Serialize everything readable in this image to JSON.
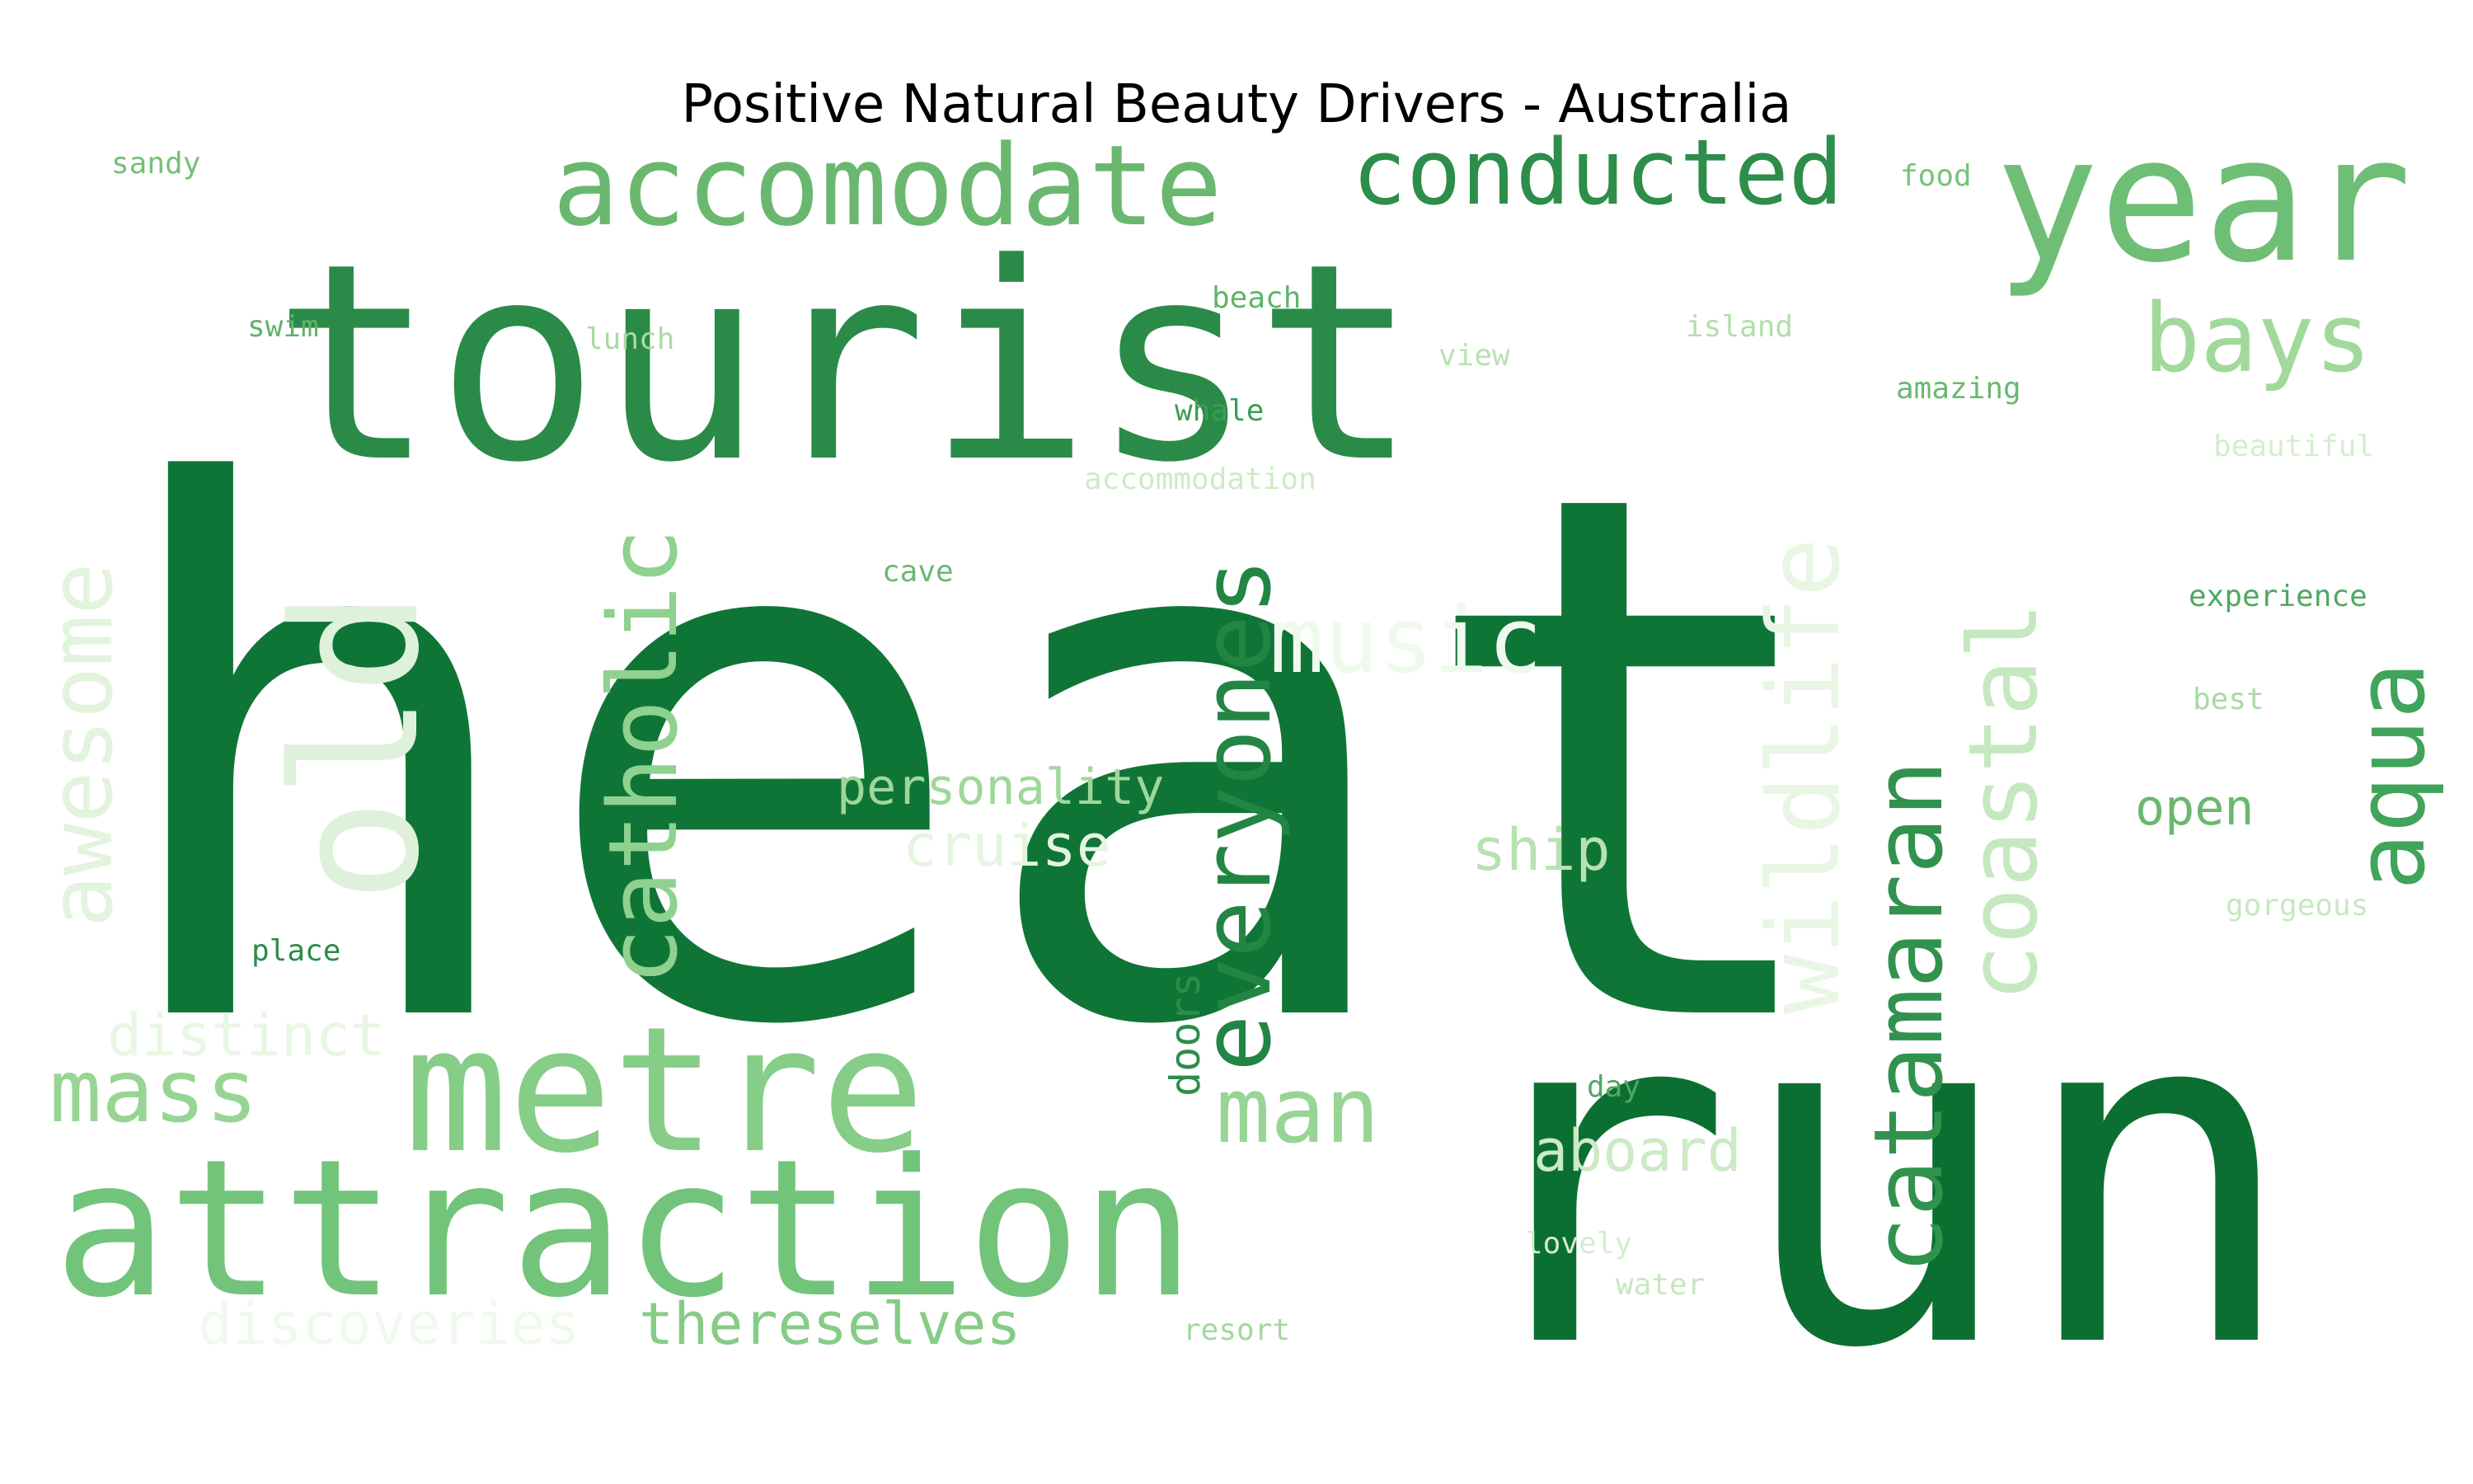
{
  "chart_data": {
    "type": "wordcloud",
    "title": "Positive Natural Beauty Drivers - Australia",
    "colormap": "Greens",
    "words": [
      {
        "text": "heat",
        "color": "#0f7536"
      },
      {
        "text": "run",
        "color": "#0c6f32"
      },
      {
        "text": "tourist",
        "color": "#2a8b49"
      },
      {
        "text": "attraction",
        "color": "#72c47b"
      },
      {
        "text": "year",
        "color": "#6fbe76"
      },
      {
        "text": "metre",
        "color": "#86cd87"
      },
      {
        "text": "accomodate",
        "color": "#6ab86f"
      },
      {
        "text": "conducted",
        "color": "#2d8d4a"
      },
      {
        "text": "old",
        "color": "#def1da"
      },
      {
        "text": "catholic",
        "color": "#8fd18f"
      },
      {
        "text": "everyones",
        "color": "#228544"
      },
      {
        "text": "catamaran",
        "color": "#31924e"
      },
      {
        "text": "coastal",
        "color": "#c6e8c0"
      },
      {
        "text": "wildlife",
        "color": "#e8f6e4"
      },
      {
        "text": "aqua",
        "color": "#40a45a"
      },
      {
        "text": "bays",
        "color": "#a1d99b"
      },
      {
        "text": "awesome",
        "color": "#e2f3de"
      },
      {
        "text": "mass",
        "color": "#98d594"
      },
      {
        "text": "man",
        "color": "#98d594"
      },
      {
        "text": "music",
        "color": "#f0f9ed"
      },
      {
        "text": "personality",
        "color": "#9fd79a"
      },
      {
        "text": "cruise",
        "color": "#e5f5e0"
      },
      {
        "text": "ship",
        "color": "#b7e2b1"
      },
      {
        "text": "distinct",
        "color": "#e8f6e4"
      },
      {
        "text": "aboard",
        "color": "#cdeac7"
      },
      {
        "text": "thereselves",
        "color": "#86cc86"
      },
      {
        "text": "discoveries",
        "color": "#f0f9ed"
      },
      {
        "text": "doors",
        "color": "#2d8d4a"
      },
      {
        "text": "open",
        "color": "#6ab86f"
      },
      {
        "text": "sandy",
        "color": "#73c077"
      },
      {
        "text": "food",
        "color": "#76c278"
      },
      {
        "text": "swim",
        "color": "#5fb36a"
      },
      {
        "text": "lunch",
        "color": "#a8dba2"
      },
      {
        "text": "beach",
        "color": "#5fb36a"
      },
      {
        "text": "island",
        "color": "#b1dfaa"
      },
      {
        "text": "view",
        "color": "#b7e2b1"
      },
      {
        "text": "amazing",
        "color": "#6ab86f"
      },
      {
        "text": "whale",
        "color": "#3c9c55"
      },
      {
        "text": "beautiful",
        "color": "#d4eecd"
      },
      {
        "text": "accommodation",
        "color": "#cdeac7"
      },
      {
        "text": "cave",
        "color": "#6ab86f"
      },
      {
        "text": "experience",
        "color": "#4fa862"
      },
      {
        "text": "best",
        "color": "#a8dba2"
      },
      {
        "text": "gorgeous",
        "color": "#c6e8c0"
      },
      {
        "text": "place",
        "color": "#2a8b49"
      },
      {
        "text": "day",
        "color": "#4fa862"
      },
      {
        "text": "lovely",
        "color": "#d4eecd"
      },
      {
        "text": "water",
        "color": "#c6e8c0"
      },
      {
        "text": "resort",
        "color": "#a1d99b"
      }
    ]
  }
}
